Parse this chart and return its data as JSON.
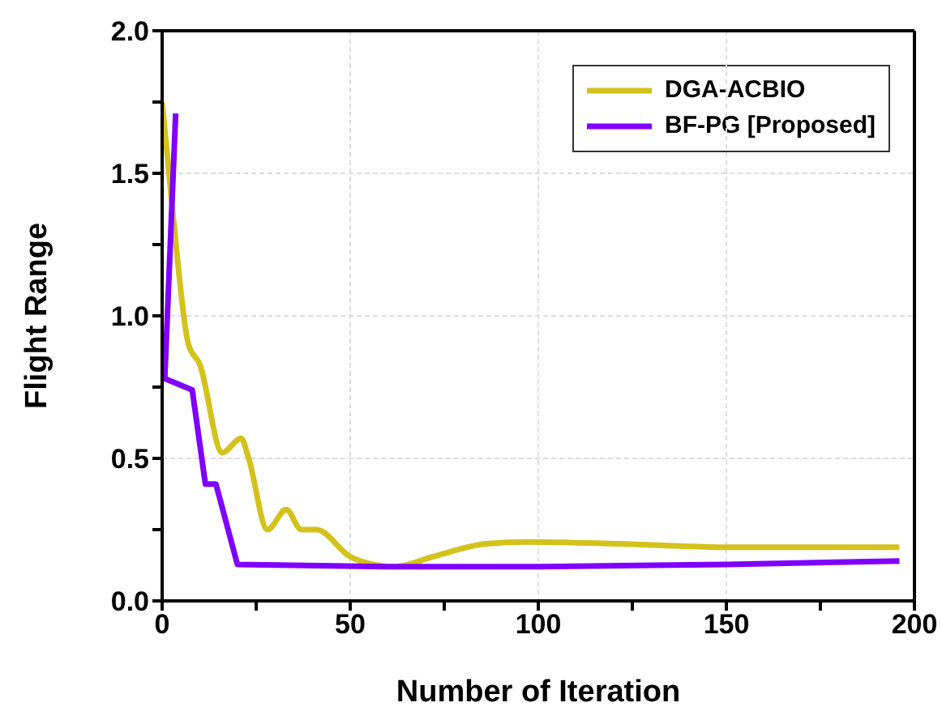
{
  "chart_data": {
    "type": "line",
    "xlabel": "Number of Iteration",
    "ylabel": "Flight Range",
    "xlim": [
      0,
      200
    ],
    "xticks": [
      0,
      {
        "value": 25,
        "label": null
      },
      50,
      {
        "value": 75,
        "label": null
      },
      100,
      {
        "value": 125,
        "label": null
      },
      150,
      {
        "value": 175,
        "label": null
      },
      200
    ],
    "ylim": [
      0,
      2.0
    ],
    "yticks": [
      {
        "value": 0,
        "label": "0.0"
      },
      {
        "value": 0.25,
        "label": null
      },
      0.5,
      {
        "value": 0.75,
        "label": null
      },
      {
        "value": 1,
        "label": "1.0"
      },
      {
        "value": 1.25,
        "label": null
      },
      1.5,
      {
        "value": 1.75,
        "label": null
      },
      {
        "value": 2,
        "label": "2.0"
      }
    ],
    "grid": true,
    "legend": "top right",
    "marker": "none",
    "line_style": "solid",
    "series": [
      {
        "name": "DGA-ACBIO",
        "color": "#d4c21c",
        "x": [
          0,
          3,
          7,
          10,
          16,
          21,
          23,
          28,
          33,
          37,
          41,
          50,
          56,
          62,
          72,
          86,
          97,
          129,
          150,
          196
        ],
        "values": [
          1.75,
          1.34,
          0.9,
          0.83,
          0.52,
          0.57,
          0.5,
          0.25,
          0.32,
          0.25,
          0.25,
          0.155,
          0.128,
          0.12,
          0.155,
          0.2,
          0.207,
          0.197,
          0.188,
          0.188
        ]
      },
      {
        "name": "BF-PG [Proposed]",
        "color": "#8000ff",
        "x": [
          3.6,
          0.7,
          8,
          11.5,
          14.3,
          20,
          60,
          100,
          150,
          196
        ],
        "values": [
          1.71,
          0.78,
          0.74,
          0.41,
          0.41,
          0.128,
          0.12,
          0.12,
          0.128,
          0.14
        ]
      }
    ]
  }
}
